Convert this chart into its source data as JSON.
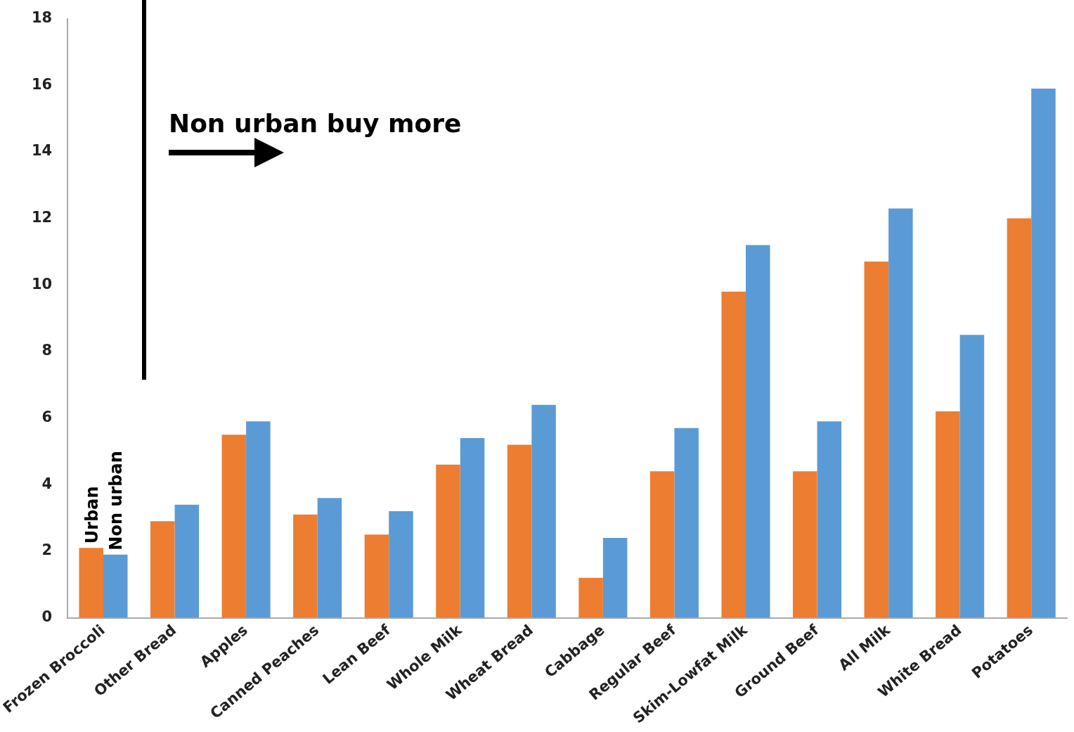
{
  "chart_data": {
    "type": "bar",
    "categories": [
      "Frozen Broccoli",
      "Other Bread",
      "Apples",
      "Canned Peaches",
      "Lean Beef",
      "Whole Milk",
      "Wheat Bread",
      "Cabbage",
      "Regular Beef",
      "Skim-Lowfat Milk",
      "Ground Beef",
      "All Milk",
      "White Bread",
      "Potatoes"
    ],
    "series": [
      {
        "name": "Urban",
        "color": "#ed7d31",
        "values": [
          2.1,
          2.9,
          5.5,
          3.1,
          2.5,
          4.6,
          5.2,
          1.2,
          4.4,
          9.8,
          4.4,
          10.7,
          6.2,
          12.0
        ]
      },
      {
        "name": "Non urban",
        "color": "#5b9bd5",
        "values": [
          1.9,
          3.4,
          5.9,
          3.6,
          3.2,
          5.4,
          6.4,
          2.4,
          5.7,
          11.2,
          5.9,
          12.3,
          8.5,
          15.9
        ]
      }
    ],
    "ylim": [
      0,
      18
    ],
    "yticks": [
      0,
      2,
      4,
      6,
      8,
      10,
      12,
      14,
      16,
      18
    ],
    "grid": false,
    "legend": false,
    "annotations": [
      "Non urban buy more"
    ]
  }
}
